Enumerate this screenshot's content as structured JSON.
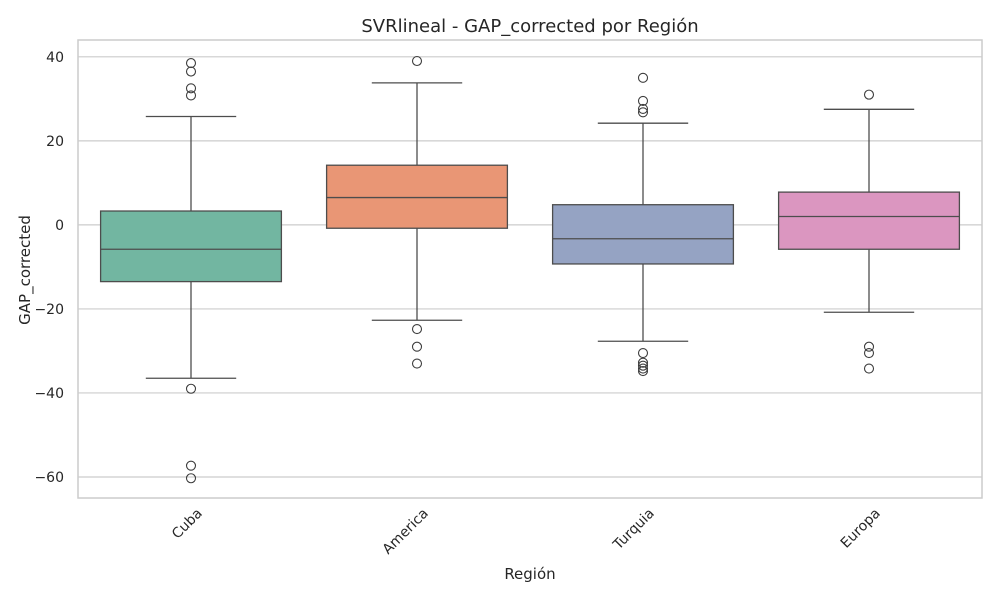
{
  "chart_data": {
    "type": "boxplot",
    "title": "SVRlineal - GAP_corrected por Región",
    "xlabel": "Región",
    "ylabel": "GAP_corrected",
    "ylim": [
      -65,
      44
    ],
    "yticks": [
      40,
      20,
      0,
      -20,
      -40,
      -60
    ],
    "ytick_labels": [
      "40",
      "20",
      "0",
      "−20",
      "−40",
      "−60"
    ],
    "grid": true,
    "categories": [
      "Cuba",
      "America",
      "Turquia",
      "Europa"
    ],
    "colors": [
      "#72b6a1",
      "#e99675",
      "#95a3c3",
      "#db96c0"
    ],
    "edge_color": "#4d4d4d",
    "boxes": [
      {
        "category": "Cuba",
        "q1": -13.5,
        "median": -5.8,
        "q3": 3.3,
        "whisker_low": -36.5,
        "whisker_high": 25.8,
        "outliers": [
          38.5,
          36.5,
          32.5,
          30.8,
          -39,
          -57.3,
          -60.3
        ]
      },
      {
        "category": "America",
        "q1": -0.8,
        "median": 6.5,
        "q3": 14.2,
        "whisker_low": -22.7,
        "whisker_high": 33.8,
        "outliers": [
          39,
          -24.8,
          -29,
          -33
        ]
      },
      {
        "category": "Turquia",
        "q1": -9.3,
        "median": -3.3,
        "q3": 4.8,
        "whisker_low": -27.7,
        "whisker_high": 24.2,
        "outliers": [
          35,
          29.5,
          27.6,
          26.8,
          -30.5,
          -32.8,
          -33.5,
          -34.2,
          -34.8
        ]
      },
      {
        "category": "Europa",
        "q1": -5.8,
        "median": 2,
        "q3": 7.8,
        "whisker_low": -20.8,
        "whisker_high": 27.5,
        "outliers": [
          31,
          -29,
          -30.5,
          -34.2
        ]
      }
    ]
  }
}
